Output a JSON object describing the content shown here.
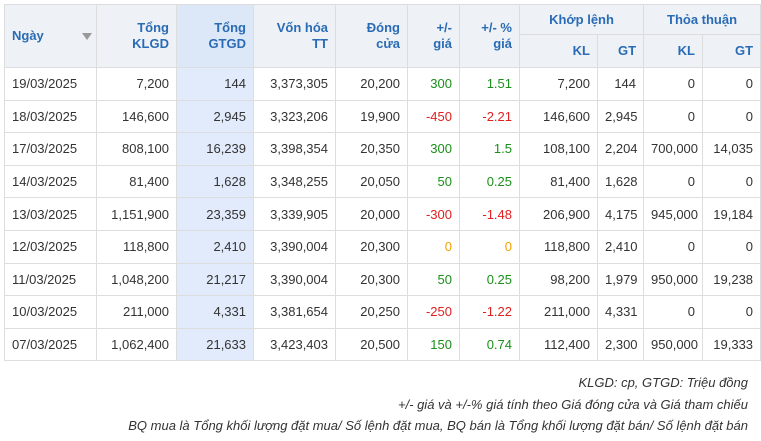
{
  "headers": {
    "date": "Ngày",
    "klgd": [
      "Tổng",
      "KLGD"
    ],
    "gtgd": [
      "Tổng",
      "GTGD"
    ],
    "market_cap": [
      "Vốn hóa",
      "TT"
    ],
    "close": [
      "Đóng",
      "cửa"
    ],
    "change": [
      "+/-",
      "giá"
    ],
    "change_pct": [
      "+/- %",
      "giá"
    ],
    "matched_group": "Khớp lệnh",
    "matched_kl": "KL",
    "matched_gt": "GT",
    "deal_group": "Thỏa thuận",
    "deal_kl": "KL",
    "deal_gt": "GT"
  },
  "rows": [
    {
      "date": "19/03/2025",
      "klgd": "7,200",
      "gtgd": "144",
      "cap": "3,373,305",
      "close": "20,200",
      "chg": "300",
      "pct": "1.51",
      "dir": "pos",
      "mkl": "7,200",
      "mgt": "144",
      "dkl": "0",
      "dgt": "0"
    },
    {
      "date": "18/03/2025",
      "klgd": "146,600",
      "gtgd": "2,945",
      "cap": "3,323,206",
      "close": "19,900",
      "chg": "-450",
      "pct": "-2.21",
      "dir": "neg",
      "mkl": "146,600",
      "mgt": "2,945",
      "dkl": "0",
      "dgt": "0"
    },
    {
      "date": "17/03/2025",
      "klgd": "808,100",
      "gtgd": "16,239",
      "cap": "3,398,354",
      "close": "20,350",
      "chg": "300",
      "pct": "1.5",
      "dir": "pos",
      "mkl": "108,100",
      "mgt": "2,204",
      "dkl": "700,000",
      "dgt": "14,035"
    },
    {
      "date": "14/03/2025",
      "klgd": "81,400",
      "gtgd": "1,628",
      "cap": "3,348,255",
      "close": "20,050",
      "chg": "50",
      "pct": "0.25",
      "dir": "pos",
      "mkl": "81,400",
      "mgt": "1,628",
      "dkl": "0",
      "dgt": "0"
    },
    {
      "date": "13/03/2025",
      "klgd": "1,151,900",
      "gtgd": "23,359",
      "cap": "3,339,905",
      "close": "20,000",
      "chg": "-300",
      "pct": "-1.48",
      "dir": "neg",
      "mkl": "206,900",
      "mgt": "4,175",
      "dkl": "945,000",
      "dgt": "19,184"
    },
    {
      "date": "12/03/2025",
      "klgd": "118,800",
      "gtgd": "2,410",
      "cap": "3,390,004",
      "close": "20,300",
      "chg": "0",
      "pct": "0",
      "dir": "zero",
      "mkl": "118,800",
      "mgt": "2,410",
      "dkl": "0",
      "dgt": "0"
    },
    {
      "date": "11/03/2025",
      "klgd": "1,048,200",
      "gtgd": "21,217",
      "cap": "3,390,004",
      "close": "20,300",
      "chg": "50",
      "pct": "0.25",
      "dir": "pos",
      "mkl": "98,200",
      "mgt": "1,979",
      "dkl": "950,000",
      "dgt": "19,238"
    },
    {
      "date": "10/03/2025",
      "klgd": "211,000",
      "gtgd": "4,331",
      "cap": "3,381,654",
      "close": "20,250",
      "chg": "-250",
      "pct": "-1.22",
      "dir": "neg",
      "mkl": "211,000",
      "mgt": "4,331",
      "dkl": "0",
      "dgt": "0"
    },
    {
      "date": "07/03/2025",
      "klgd": "1,062,400",
      "gtgd": "21,633",
      "cap": "3,423,403",
      "close": "20,500",
      "chg": "150",
      "pct": "0.74",
      "dir": "pos",
      "mkl": "112,400",
      "mgt": "2,300",
      "dkl": "950,000",
      "dgt": "19,333"
    }
  ],
  "notes": [
    "KLGD: cp, GTGD: Triệu đồng",
    "+/- giá và +/-% giá tính theo Giá đóng cửa và Giá tham chiếu",
    "BQ mua là Tổng khối lượng đặt mua/ Số lệnh đặt mua, BQ bán là Tổng khối lượng đặt bán/ Số lệnh đặt bán"
  ],
  "colors": {
    "positive": "#1a8f1a",
    "negative": "#e02020",
    "unchanged": "#f0a000",
    "header_text": "#2a6bb5",
    "highlight_column": "#e2ebfb"
  },
  "sort": {
    "column": "date",
    "direction": "descending",
    "icon": "sort-down-icon"
  }
}
